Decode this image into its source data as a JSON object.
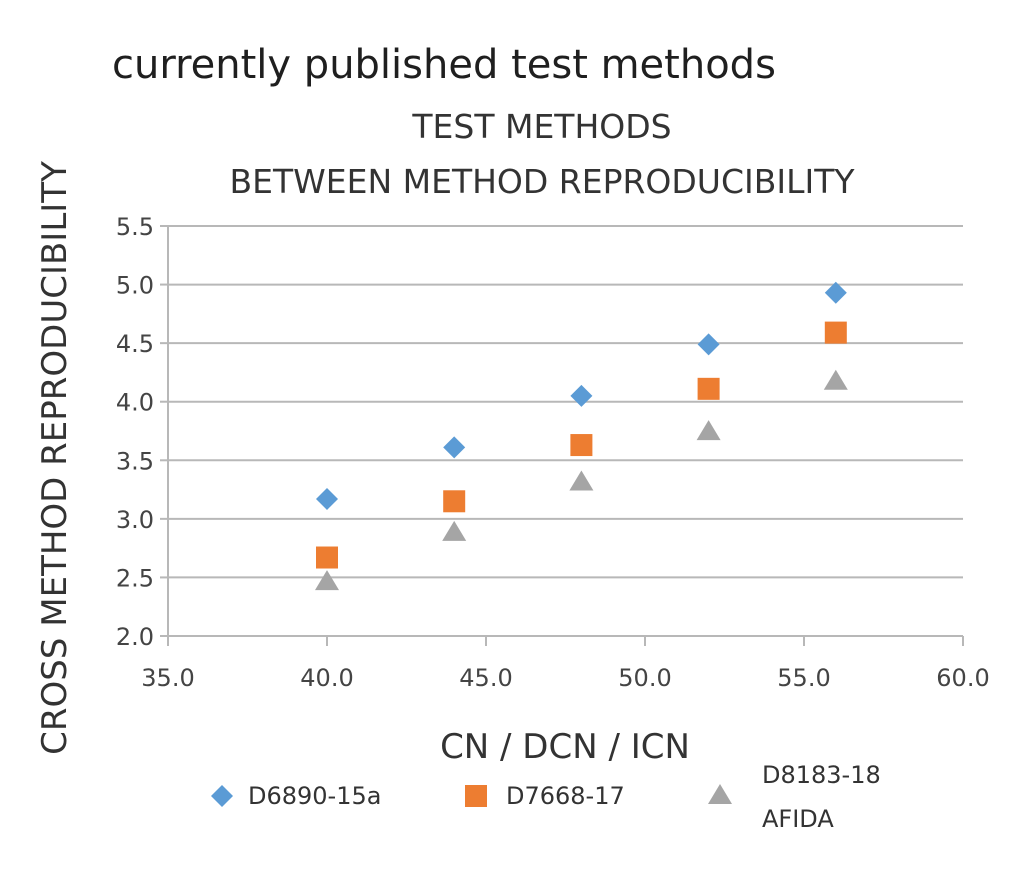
{
  "heading": "currently published test methods",
  "chart_data": {
    "type": "scatter",
    "title": "TEST METHODS",
    "subtitle": "BETWEEN METHOD REPRODUCIBILITY",
    "xlabel": "CN / DCN / ICN",
    "ylabel": "CROSS METHOD REPRODUCIBILITY",
    "xlim": [
      35.0,
      60.0
    ],
    "ylim": [
      2.0,
      5.5
    ],
    "x_ticks": [
      "35.0",
      "40.0",
      "45.0",
      "50.0",
      "55.0",
      "60.0"
    ],
    "y_ticks": [
      "2.0",
      "2.5",
      "3.0",
      "3.5",
      "4.0",
      "4.5",
      "5.0",
      "5.5"
    ],
    "grid": "horizontal",
    "legend_position": "bottom",
    "series": [
      {
        "name": "D6890-15a",
        "marker": "diamond",
        "color": "#5b9bd5",
        "x": [
          40,
          44,
          48,
          52,
          56
        ],
        "y": [
          3.17,
          3.61,
          4.05,
          4.49,
          4.93
        ]
      },
      {
        "name": "D7668-17",
        "marker": "square",
        "color": "#ed7d31",
        "x": [
          40,
          44,
          48,
          52,
          56
        ],
        "y": [
          2.67,
          3.15,
          3.63,
          4.11,
          4.59
        ]
      },
      {
        "name": "D8183-18 AFIDA",
        "legend_lines": [
          "D8183-18",
          "AFIDA"
        ],
        "marker": "triangle",
        "color": "#a5a5a5",
        "x": [
          40,
          44,
          48,
          52,
          56
        ],
        "y": [
          2.46,
          2.88,
          3.31,
          3.74,
          4.17
        ]
      }
    ]
  }
}
